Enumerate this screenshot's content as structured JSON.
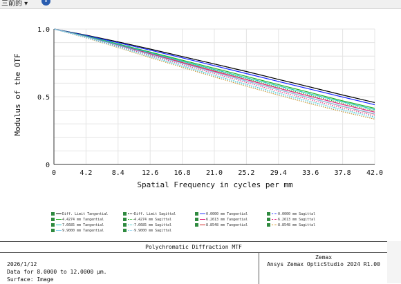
{
  "toolbar": {
    "label": "三前的 ▾",
    "help_icon": "info-icon"
  },
  "chart_data": {
    "type": "line",
    "title": "Polychromatic Diffraction MTF",
    "xlabel": "Spatial Frequency in cycles per mm",
    "ylabel": "Modulus of the OTF",
    "xlim": [
      0,
      42
    ],
    "ylim": [
      0,
      1
    ],
    "xticks": [
      "0",
      "4.2",
      "8.4",
      "12.6",
      "16.8",
      "21.0",
      "25.2",
      "29.4",
      "33.6",
      "37.8",
      "42.0"
    ],
    "yticks": [
      "0",
      "0.5",
      "1.0"
    ],
    "grid": true,
    "x": [
      0,
      4.2,
      8.4,
      12.6,
      16.8,
      21.0,
      25.2,
      29.4,
      33.6,
      37.8,
      42.0
    ],
    "series": [
      {
        "name": "Diff. Limit Tangential",
        "color": "#000000",
        "style": "solid",
        "values": [
          1.0,
          0.955,
          0.905,
          0.852,
          0.797,
          0.742,
          0.686,
          0.628,
          0.571,
          0.513,
          0.457
        ]
      },
      {
        "name": "Diff. Limit Sagittal",
        "color": "#000000",
        "style": "dotted",
        "values": [
          1.0,
          0.955,
          0.905,
          0.852,
          0.797,
          0.742,
          0.686,
          0.628,
          0.571,
          0.513,
          0.457
        ]
      },
      {
        "name": "0.0000 mm Tangential",
        "color": "#1c2bff",
        "style": "solid",
        "values": [
          1.0,
          0.952,
          0.899,
          0.844,
          0.787,
          0.729,
          0.671,
          0.613,
          0.555,
          0.498,
          0.441
        ]
      },
      {
        "name": "0.0000 mm Sagittal",
        "color": "#1c2bff",
        "style": "dotted",
        "values": [
          1.0,
          0.952,
          0.899,
          0.844,
          0.787,
          0.729,
          0.671,
          0.613,
          0.555,
          0.498,
          0.441
        ]
      },
      {
        "name": "4.4274 mm Tangential",
        "color": "#22b322",
        "style": "solid",
        "values": [
          1.0,
          0.948,
          0.89,
          0.83,
          0.77,
          0.71,
          0.65,
          0.59,
          0.53,
          0.47,
          0.415
        ]
      },
      {
        "name": "4.4274 mm Sagittal",
        "color": "#22b322",
        "style": "dotted",
        "values": [
          1.0,
          0.945,
          0.884,
          0.821,
          0.758,
          0.695,
          0.632,
          0.57,
          0.51,
          0.452,
          0.396
        ]
      },
      {
        "name": "6.2613 mm Tangential",
        "color": "#e0207a",
        "style": "solid",
        "values": [
          1.0,
          0.944,
          0.882,
          0.818,
          0.753,
          0.689,
          0.626,
          0.563,
          0.502,
          0.443,
          0.386
        ]
      },
      {
        "name": "6.2613 mm Sagittal",
        "color": "#e0207a",
        "style": "dotted",
        "values": [
          1.0,
          0.94,
          0.874,
          0.806,
          0.738,
          0.671,
          0.605,
          0.54,
          0.477,
          0.417,
          0.36
        ]
      },
      {
        "name": "7.6685 mm Tangential",
        "color": "#20c0c0",
        "style": "solid",
        "values": [
          1.0,
          0.946,
          0.886,
          0.825,
          0.763,
          0.701,
          0.64,
          0.58,
          0.52,
          0.462,
          0.405
        ]
      },
      {
        "name": "7.6685 mm Sagittal",
        "color": "#20c0c0",
        "style": "dotted",
        "values": [
          1.0,
          0.937,
          0.868,
          0.798,
          0.728,
          0.659,
          0.592,
          0.527,
          0.465,
          0.405,
          0.35
        ]
      },
      {
        "name": "8.8548 mm Tangential",
        "color": "#d01818",
        "style": "solid",
        "values": [
          1.0,
          0.943,
          0.879,
          0.813,
          0.747,
          0.681,
          0.616,
          0.552,
          0.49,
          0.429,
          0.372
        ]
      },
      {
        "name": "8.8548 mm Sagittal",
        "color": "#d09018",
        "style": "dotted",
        "values": [
          1.0,
          0.934,
          0.862,
          0.789,
          0.717,
          0.646,
          0.577,
          0.511,
          0.448,
          0.389,
          0.334
        ]
      },
      {
        "name": "9.9000 mm Tangential",
        "color": "#8ad0f0",
        "style": "solid",
        "values": [
          1.0,
          0.942,
          0.878,
          0.812,
          0.746,
          0.68,
          0.615,
          0.552,
          0.49,
          0.43,
          0.374
        ]
      },
      {
        "name": "9.9000 mm Sagittal",
        "color": "#8ad0f0",
        "style": "dotted",
        "values": [
          1.0,
          0.936,
          0.866,
          0.794,
          0.722,
          0.652,
          0.584,
          0.518,
          0.455,
          0.396,
          0.341
        ]
      }
    ],
    "legend_labels": [
      "Diff. Limit Tangential",
      "Diff. Limit Sagittal",
      "0.0000 mm Tangential",
      "0.0000 mm Sagittal",
      "4.4274 mm Tangential",
      "4.4274 mm Sagittal",
      "6.2613 mm Tangential",
      "6.2613 mm Sagittal",
      "7.6685 mm Tangential",
      "7.6685 mm Sagittal",
      "8.8548 mm Tangential",
      "8.8548 mm Sagittal",
      "9.9000 mm Tangential",
      "9.9000 mm Sagittal"
    ]
  },
  "footer": {
    "date": "2026/1/12",
    "data_range": "Data for 8.0000 to 12.0000 µm.",
    "surface": "Surface: Image",
    "vendor": "Zemax",
    "product": "Ansys Zemax OpticStudio 2024 R1.00"
  }
}
